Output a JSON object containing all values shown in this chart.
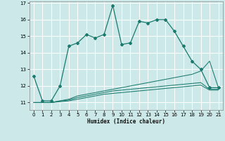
{
  "xlabel": "Humidex (Indice chaleur)",
  "bg_color": "#cce8e8",
  "line_color": "#1a7a6e",
  "grid_color": "#ffffff",
  "xlim": [
    -0.5,
    21.5
  ],
  "ylim": [
    10.55,
    17.1
  ],
  "yticks": [
    11,
    12,
    13,
    14,
    15,
    16,
    17
  ],
  "xticks": [
    0,
    1,
    2,
    3,
    4,
    5,
    6,
    7,
    8,
    9,
    10,
    11,
    12,
    13,
    14,
    15,
    16,
    17,
    18,
    19,
    20,
    21
  ],
  "main_x": [
    0,
    1,
    2,
    3,
    4,
    5,
    6,
    7,
    8,
    9,
    10,
    11,
    12,
    13,
    14,
    15,
    16,
    17,
    18,
    19,
    20,
    21
  ],
  "main_y": [
    12.6,
    11.1,
    11.1,
    12.0,
    14.4,
    14.6,
    15.1,
    14.9,
    15.1,
    16.85,
    14.5,
    14.6,
    15.9,
    15.8,
    16.0,
    16.0,
    15.3,
    14.4,
    13.5,
    13.0,
    11.9,
    11.9
  ],
  "line2_x": [
    0,
    1,
    2,
    3,
    4,
    5,
    6,
    7,
    8,
    9,
    10,
    11,
    12,
    13,
    14,
    15,
    16,
    17,
    18,
    19,
    20,
    21
  ],
  "line2_y": [
    11.0,
    11.0,
    11.0,
    11.1,
    11.2,
    11.4,
    11.5,
    11.6,
    11.7,
    11.8,
    11.9,
    12.0,
    12.1,
    12.2,
    12.3,
    12.4,
    12.5,
    12.6,
    12.7,
    12.9,
    13.5,
    11.9
  ],
  "line3_x": [
    0,
    1,
    2,
    3,
    4,
    5,
    6,
    7,
    8,
    9,
    10,
    11,
    12,
    13,
    14,
    15,
    16,
    17,
    18,
    19,
    20,
    21
  ],
  "line3_y": [
    11.0,
    11.0,
    11.0,
    11.1,
    11.15,
    11.3,
    11.4,
    11.5,
    11.6,
    11.7,
    11.75,
    11.8,
    11.85,
    11.9,
    11.95,
    12.0,
    12.05,
    12.1,
    12.15,
    12.2,
    11.8,
    11.8
  ],
  "line4_x": [
    0,
    1,
    2,
    3,
    4,
    5,
    6,
    7,
    8,
    9,
    10,
    11,
    12,
    13,
    14,
    15,
    16,
    17,
    18,
    19,
    20,
    21
  ],
  "line4_y": [
    11.0,
    11.0,
    11.0,
    11.05,
    11.1,
    11.2,
    11.3,
    11.4,
    11.5,
    11.55,
    11.6,
    11.65,
    11.7,
    11.75,
    11.8,
    11.85,
    11.9,
    11.95,
    12.0,
    12.05,
    11.75,
    11.75
  ]
}
